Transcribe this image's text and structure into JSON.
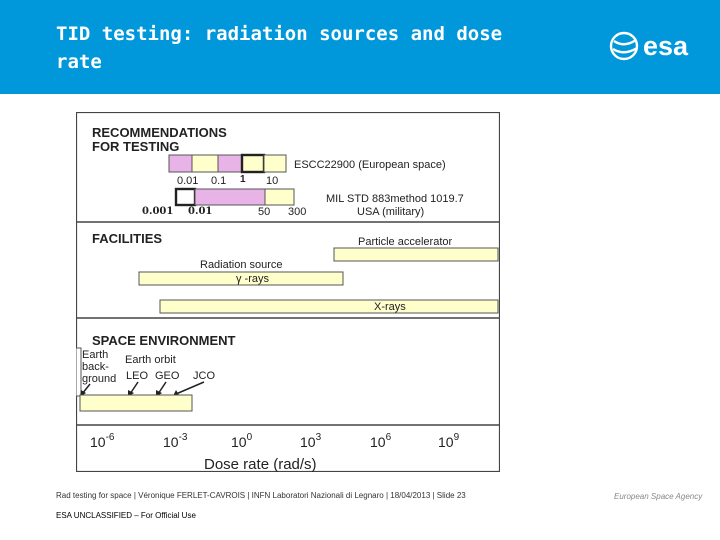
{
  "header": {
    "title": "TID testing: radiation sources and dose rate",
    "logo_text": "esa",
    "background": "#0098db"
  },
  "figure": {
    "section_recommendations": "RECOMMENDATIONS\nFOR TESTING",
    "section_facilities": "FACILITIES",
    "section_environment": "SPACE ENVIRONMENT",
    "escc_values": [
      "0.01",
      "0.1",
      "1",
      "10"
    ],
    "escc_label": "ESCC22900 (European space)",
    "mil_values": [
      "0.001",
      "0.01",
      "50",
      "300"
    ],
    "mil_label_line1": "MIL STD 883method 1019.7",
    "mil_label_line2": "USA (military)",
    "particle_accelerator": "Particle accelerator",
    "radiation_source": "Radiation source",
    "gamma_rays": "γ -rays",
    "x_rays": "X-rays",
    "earth_background": [
      "Earth",
      "back-",
      "ground"
    ],
    "earth_orbit": "Earth orbit",
    "orbit_labels": [
      "LEO",
      "GEO",
      "JCO"
    ],
    "axis_ticks": [
      {
        "base": "10",
        "exp": "-6"
      },
      {
        "base": "10",
        "exp": "-3"
      },
      {
        "base": "10",
        "exp": "0"
      },
      {
        "base": "10",
        "exp": "3"
      },
      {
        "base": "10",
        "exp": "6"
      },
      {
        "base": "10",
        "exp": "9"
      }
    ],
    "axis_label": "Dose rate (rad/s)",
    "colors": {
      "pink": "#e8b4e8",
      "yellow": "#ffffcc",
      "border": "#555555"
    }
  },
  "footer": {
    "line": "Rad testing for space | Véronique FERLET-CAVROIS | INFN Laboratori Nazionali di Legnaro | 18/04/2013 | Slide  23",
    "classification": "ESA UNCLASSIFIED – For Official Use",
    "agency": "European Space Agency"
  }
}
